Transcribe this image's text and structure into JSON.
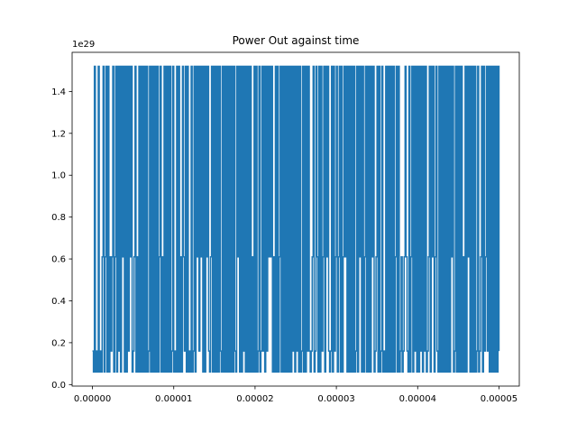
{
  "chart_data": {
    "type": "line",
    "title": "Power Out against time",
    "xlabel": "",
    "ylabel": "",
    "y_offset_text": "1e29",
    "xlim": [
      -2.5e-06,
      5.25e-05
    ],
    "ylim": [
      -0.00725,
      1.587
    ],
    "x_ticks": [
      {
        "value": 0.0,
        "label": "0.00000"
      },
      {
        "value": 1e-05,
        "label": "0.00001"
      },
      {
        "value": 2e-05,
        "label": "0.00002"
      },
      {
        "value": 3e-05,
        "label": "0.00003"
      },
      {
        "value": 4e-05,
        "label": "0.00004"
      },
      {
        "value": 5e-05,
        "label": "0.00005"
      }
    ],
    "y_ticks": [
      {
        "value": 0.0,
        "label": "0.0"
      },
      {
        "value": 0.2,
        "label": "0.2"
      },
      {
        "value": 0.4,
        "label": "0.4"
      },
      {
        "value": 0.6,
        "label": "0.6"
      },
      {
        "value": 0.8,
        "label": "0.8"
      },
      {
        "value": 1.0,
        "label": "1.0"
      },
      {
        "value": 1.2,
        "label": "1.2"
      },
      {
        "value": 1.4,
        "label": "1.4"
      }
    ],
    "grid": false,
    "series": [
      {
        "color": "#1f77b4",
        "levels": [
          0.06,
          0.16,
          0.61,
          1.52
        ],
        "x_range": [
          0.0,
          5e-05
        ],
        "approx_step_count": 420
      }
    ]
  }
}
